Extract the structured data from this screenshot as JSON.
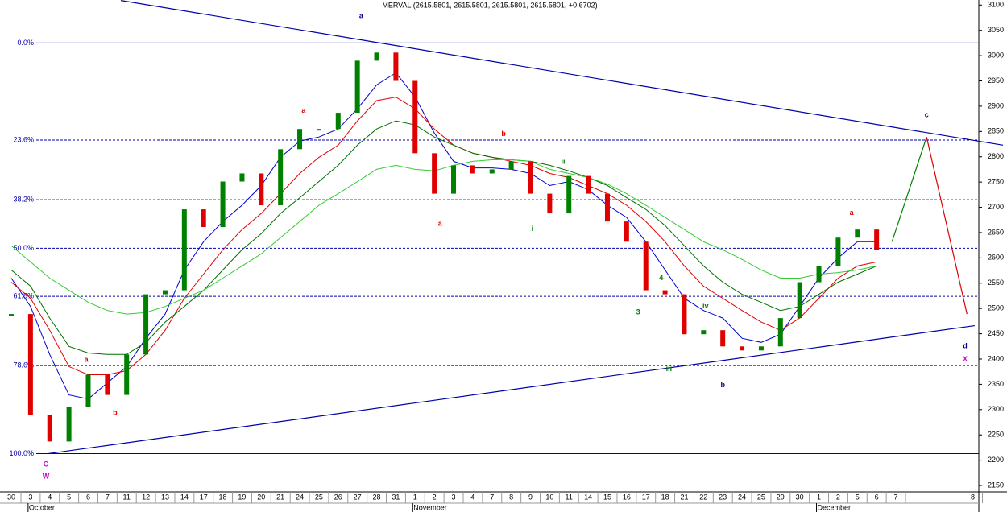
{
  "chart_data": {
    "type": "price-bars",
    "title": "MERVAL (2615.5801, 2615.5801, 2615.5801, 2615.5801, +0.6702)",
    "categories": [
      "30",
      "3",
      "4",
      "5",
      "6",
      "7",
      "11",
      "12",
      "13",
      "14",
      "17",
      "18",
      "19",
      "20",
      "21",
      "24",
      "25",
      "26",
      "27",
      "28",
      "31",
      "1",
      "2",
      "3",
      "4",
      "7",
      "8",
      "9",
      "10",
      "11",
      "14",
      "15",
      "16",
      "17",
      "18",
      "21",
      "22",
      "23",
      "24",
      "25",
      "29",
      "30",
      "1",
      "2",
      "5",
      "6",
      "7",
      null,
      null,
      null,
      "8"
    ],
    "months": [
      {
        "index": 1,
        "label": "October"
      },
      {
        "index": 21,
        "label": "November"
      },
      {
        "index": 42,
        "label": "December"
      }
    ],
    "close": [
      2489,
      2290,
      2237,
      2305,
      2369,
      2329,
      2409,
      2528,
      2536,
      2696,
      2661,
      2751,
      2767,
      2704,
      2815,
      2855,
      2855,
      2887,
      2990,
      3006,
      2950,
      2807,
      2727,
      2783,
      2767,
      2775,
      2791,
      2727,
      2688,
      2762,
      2727,
      2672,
      2632,
      2536,
      2528,
      2449,
      2457,
      2425,
      2417,
      2425,
      2481,
      2552,
      2584,
      2640,
      2656,
      2616,
      null,
      null,
      null,
      null,
      null
    ],
    "up_color": "#008000",
    "down_color": "#e00000",
    "series": [
      {
        "color": "#0000cc",
        "values": [
          2560,
          2504,
          2409,
          2329,
          2321,
          2353,
          2385,
          2441,
          2489,
          2576,
          2632,
          2672,
          2704,
          2743,
          2799,
          2831,
          2839,
          2855,
          2895,
          2942,
          2966,
          2918,
          2847,
          2791,
          2778,
          2778,
          2775,
          2767,
          2743,
          2751,
          2735,
          2704,
          2680,
          2632,
          2576,
          2520,
          2496,
          2481,
          2441,
          2433,
          2449,
          2504,
          2560,
          2600,
          2632,
          2632,
          null,
          null,
          null,
          null,
          null
        ]
      },
      {
        "color": "#e00000",
        "values": [
          2552,
          2520,
          2457,
          2385,
          2369,
          2369,
          2377,
          2409,
          2457,
          2520,
          2568,
          2616,
          2656,
          2688,
          2727,
          2767,
          2799,
          2823,
          2871,
          2911,
          2918,
          2895,
          2855,
          2823,
          2807,
          2799,
          2791,
          2783,
          2767,
          2759,
          2743,
          2727,
          2704,
          2672,
          2632,
          2584,
          2544,
          2520,
          2496,
          2473,
          2457,
          2481,
          2520,
          2560,
          2584,
          2592,
          null,
          null,
          null,
          null,
          null
        ]
      },
      {
        "color": "#007000",
        "values": [
          2576,
          2544,
          2481,
          2425,
          2412,
          2409,
          2409,
          2433,
          2473,
          2504,
          2536,
          2576,
          2616,
          2648,
          2688,
          2719,
          2751,
          2783,
          2823,
          2855,
          2871,
          2863,
          2839,
          2823,
          2807,
          2799,
          2794,
          2791,
          2783,
          2772,
          2759,
          2743,
          2719,
          2696,
          2664,
          2624,
          2584,
          2552,
          2528,
          2512,
          2496,
          2504,
          2528,
          2552,
          2568,
          2584,
          null,
          null,
          null,
          null,
          null
        ]
      },
      {
        "color": "#33cc33",
        "values": [
          2624,
          2592,
          2560,
          2536,
          2512,
          2496,
          2489,
          2492,
          2504,
          2520,
          2536,
          2560,
          2584,
          2608,
          2640,
          2672,
          2704,
          2727,
          2751,
          2775,
          2783,
          2775,
          2772,
          2783,
          2791,
          2794,
          2794,
          2791,
          2775,
          2767,
          2759,
          2746,
          2727,
          2704,
          2680,
          2656,
          2632,
          2616,
          2597,
          2576,
          2560,
          2560,
          2568,
          2571,
          2576,
          2584,
          null,
          null,
          null,
          null,
          null
        ]
      }
    ],
    "ylim": [
      2123,
      3110
    ],
    "yticks": [
      2150,
      2200,
      2250,
      2300,
      2350,
      2400,
      2450,
      2500,
      2550,
      2600,
      2650,
      2700,
      2750,
      2800,
      2850,
      2900,
      2950,
      3000,
      3050,
      3100
    ],
    "fib_levels": [
      {
        "value": 3025,
        "label": "0.0%"
      },
      {
        "value": 2833,
        "label": "23.6%"
      },
      {
        "value": 2715,
        "label": "38.2%"
      },
      {
        "value": 2619,
        "label": "50.0%"
      },
      {
        "value": 2524,
        "label": "61.8%"
      },
      {
        "value": 2387,
        "label": "78.6%"
      },
      {
        "value": 2213,
        "label": "100.0%"
      }
    ],
    "fib_color": "#0000aa",
    "trendlines": [
      {
        "color": "#0000aa",
        "x": [
          5.7,
          51.57
        ],
        "y": [
          3109,
          2823
        ]
      },
      {
        "color": "#0000aa",
        "x": [
          1.93,
          50.1
        ],
        "y": [
          2213,
          2466
        ]
      },
      {
        "color": "#008000",
        "x": [
          45.8,
          47.6
        ],
        "y": [
          2632,
          2839
        ]
      },
      {
        "color": "#e00000",
        "x": [
          47.6,
          49.7
        ],
        "y": [
          2839,
          2489
        ]
      }
    ],
    "annotations": [
      {
        "text": "a",
        "x": 18.2,
        "y": 3078,
        "color": "#00008b"
      },
      {
        "text": "b",
        "x": 37.0,
        "y": 2348,
        "color": "#00008b"
      },
      {
        "text": "c",
        "x": 47.6,
        "y": 2882,
        "color": "#00008b"
      },
      {
        "text": "d",
        "x": 49.6,
        "y": 2425,
        "color": "#00008b"
      },
      {
        "text": "C",
        "x": 1.8,
        "y": 2191,
        "color": "#cc00cc"
      },
      {
        "text": "W",
        "x": 1.8,
        "y": 2167,
        "color": "#cc00cc"
      },
      {
        "text": "X",
        "x": 49.6,
        "y": 2399,
        "color": "#cc00cc"
      },
      {
        "text": "a",
        "x": 15.2,
        "y": 2891,
        "color": "#e00000"
      },
      {
        "text": "a",
        "x": 3.9,
        "y": 2398,
        "color": "#e00000"
      },
      {
        "text": "b",
        "x": 5.4,
        "y": 2293,
        "color": "#e00000"
      },
      {
        "text": "a",
        "x": 22.3,
        "y": 2667,
        "color": "#e00000"
      },
      {
        "text": "b",
        "x": 25.6,
        "y": 2845,
        "color": "#e00000"
      },
      {
        "text": "a",
        "x": 43.7,
        "y": 2689,
        "color": "#e00000"
      },
      {
        "text": "ii",
        "x": 28.7,
        "y": 2790,
        "color": "#008000"
      },
      {
        "text": "i",
        "x": 27.1,
        "y": 2657,
        "color": "#008000"
      },
      {
        "text": "iii",
        "x": 34.2,
        "y": 2380,
        "color": "#008000"
      },
      {
        "text": "iv",
        "x": 36.1,
        "y": 2504,
        "color": "#008000"
      },
      {
        "text": "4",
        "x": 33.8,
        "y": 2560,
        "color": "#008000"
      },
      {
        "text": "3",
        "x": 32.6,
        "y": 2492,
        "color": "#008000"
      }
    ]
  }
}
